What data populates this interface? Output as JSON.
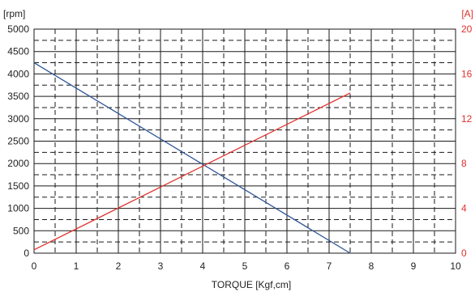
{
  "chart_data": {
    "type": "line",
    "title": "",
    "xlabel": "TORQUE [Kgf,cm]",
    "xlim": [
      0,
      10
    ],
    "x_ticks": [
      "0",
      "1",
      "2",
      "3",
      "4",
      "5",
      "6",
      "7",
      "8",
      "9",
      "10"
    ],
    "y_left": {
      "unit": "[rpm]",
      "ylim": [
        0,
        5000
      ],
      "ticks": [
        "0",
        "500",
        "1000",
        "1500",
        "2000",
        "2500",
        "3000",
        "3500",
        "4000",
        "4500",
        "5000"
      ]
    },
    "y_right": {
      "unit": "[A]",
      "ylim": [
        0,
        20
      ],
      "ticks": [
        "0",
        "4",
        "8",
        "12",
        "16",
        "20"
      ]
    },
    "grid": true,
    "series": [
      {
        "axis": "left",
        "color": "#2f5597",
        "x": [
          0,
          7.5
        ],
        "y": [
          4250,
          0
        ]
      },
      {
        "axis": "right",
        "color": "#e0302b",
        "x": [
          0,
          7.5
        ],
        "y": [
          0.3,
          14.3
        ]
      }
    ]
  }
}
